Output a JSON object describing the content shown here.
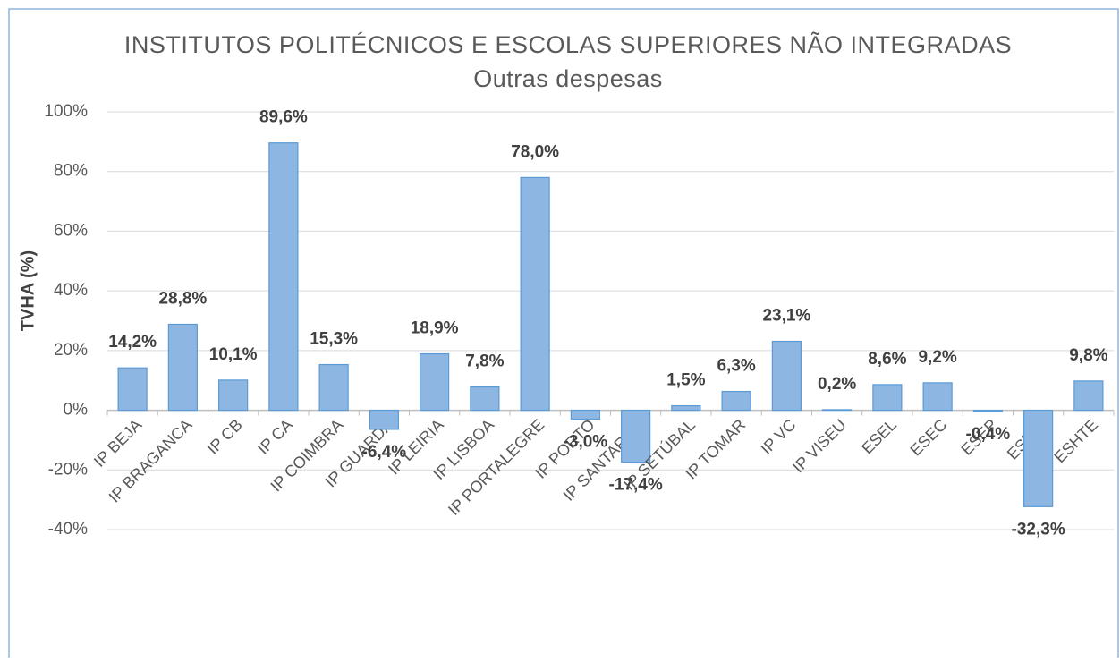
{
  "chart_data": {
    "type": "bar",
    "title": "INSTITUTOS POLITÉCNICOS E ESCOLAS SUPERIORES NÃO INTEGRADAS",
    "subtitle": "Outras despesas",
    "y_label": "TVHA (%)",
    "categories": [
      "IP BEJA",
      "IP BRAGANCA",
      "IP CB",
      "IP CA",
      "IP COIMBRA",
      "IP GUARDA",
      "IP LEIRIA",
      "IP LISBOA",
      "IP PORTALEGRE",
      "IP PORTO",
      "IP SANTARÉM",
      "IP SETÚBAL",
      "IP TOMAR",
      "IP VC",
      "IP VISEU",
      "ESEL",
      "ESEC",
      "ESEP",
      "ESNIH",
      "ESHTE"
    ],
    "values": [
      14.2,
      28.8,
      10.1,
      89.6,
      15.3,
      -6.4,
      18.9,
      7.8,
      78.0,
      -3.0,
      -17.4,
      1.5,
      6.3,
      23.1,
      0.2,
      8.6,
      9.2,
      -0.4,
      -32.3,
      9.8
    ],
    "value_labels": [
      "14,2%",
      "28,8%",
      "10,1%",
      "89,6%",
      "15,3%",
      "-6,4%",
      "18,9%",
      "7,8%",
      "78,0%",
      "-3,0%",
      "-17,4%",
      "1,5%",
      "6,3%",
      "23,1%",
      "0,2%",
      "8,6%",
      "9,2%",
      "-0,4%",
      "-32,3%",
      "9,8%"
    ],
    "color": "#8db6e2",
    "ylim": [
      -40,
      100
    ],
    "yticks": [
      {
        "value": -40,
        "label": "-40%"
      },
      {
        "value": -20,
        "label": "-20%"
      },
      {
        "value": 0,
        "label": "0%"
      },
      {
        "value": 20,
        "label": "20%"
      },
      {
        "value": 40,
        "label": "40%"
      },
      {
        "value": 60,
        "label": "60%"
      },
      {
        "value": 80,
        "label": "80%"
      },
      {
        "value": 100,
        "label": "100%"
      }
    ],
    "grid": true
  }
}
